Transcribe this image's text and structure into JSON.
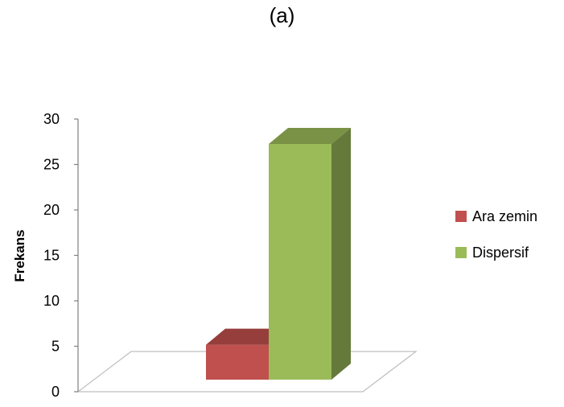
{
  "panel_label": "(a)",
  "chart_data": {
    "type": "bar",
    "projection": "3d-column",
    "categories": [
      ""
    ],
    "series": [
      {
        "name": "Ara zemin",
        "values": [
          4
        ],
        "color": "#C0504D"
      },
      {
        "name": "Dispersif",
        "values": [
          27
        ],
        "color": "#9BBB59"
      }
    ],
    "ylabel": "Frekans",
    "xlabel": "",
    "ylim": [
      0,
      30
    ],
    "yticks": [
      0,
      5,
      10,
      15,
      20,
      25,
      30
    ],
    "grid": false,
    "legend_position": "right"
  }
}
